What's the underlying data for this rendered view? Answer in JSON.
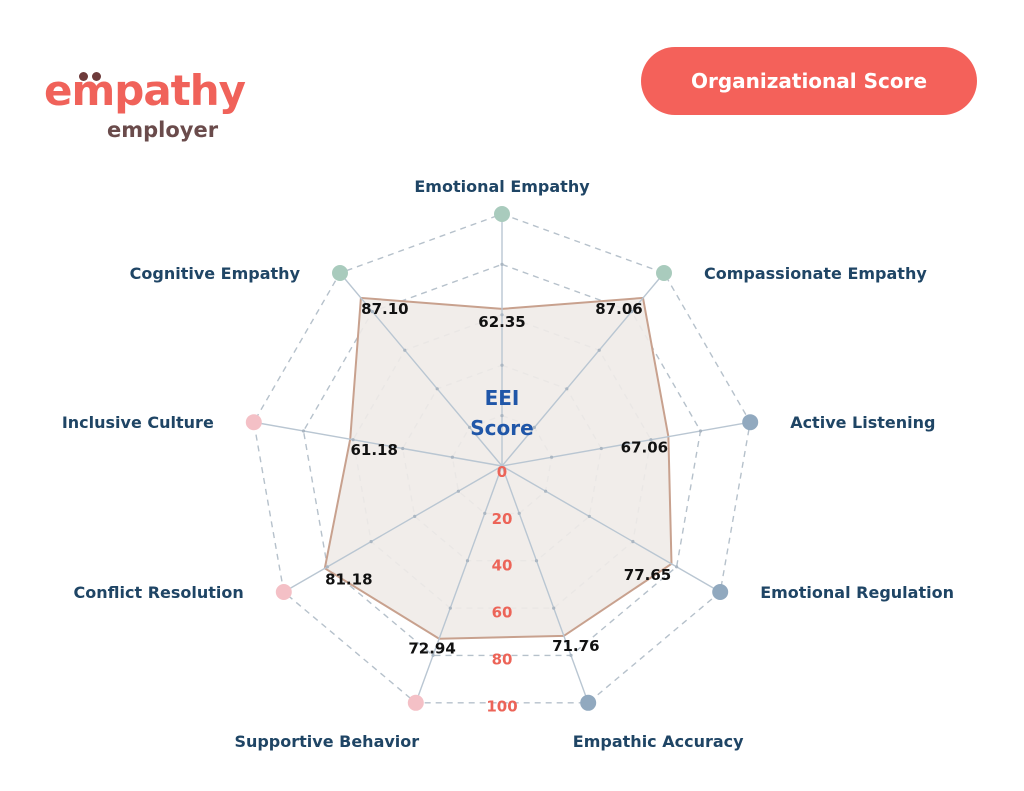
{
  "logo": {
    "word": "empathy",
    "subtitle": "employer"
  },
  "button": {
    "label": "Organizational Score"
  },
  "chart_data": {
    "type": "radar",
    "center_label": [
      "EEI",
      "Score"
    ],
    "categories": [
      "Emotional  Empathy",
      "Compassionate Empathy",
      "Active Listening",
      "Emotional Regulation",
      "Empathic Accuracy",
      "Supportive Behavior",
      "Conflict Resolution",
      "Inclusive Culture",
      "Cognitive Empathy"
    ],
    "values": [
      62.35,
      87.06,
      67.06,
      77.65,
      71.76,
      72.94,
      81.18,
      61.18,
      87.1
    ],
    "value_labels": [
      "62.35",
      "87.06",
      "67.06",
      "77.65",
      "71.76",
      "72.94",
      "81.18",
      "61.18",
      "87.10"
    ],
    "ticks": [
      0,
      20,
      40,
      60,
      80,
      100
    ],
    "range": [
      0,
      100
    ],
    "grid": true,
    "marker_colors": [
      "#a9cbbd",
      "#a9cbbd",
      "#91a9bf",
      "#91a9bf",
      "#91a9bf",
      "#f4c0c6",
      "#f4c0c6",
      "#f4c0c6",
      "#a9cbbd"
    ],
    "fill_color": "#efebe8",
    "stroke_color": "#c8a18e"
  }
}
